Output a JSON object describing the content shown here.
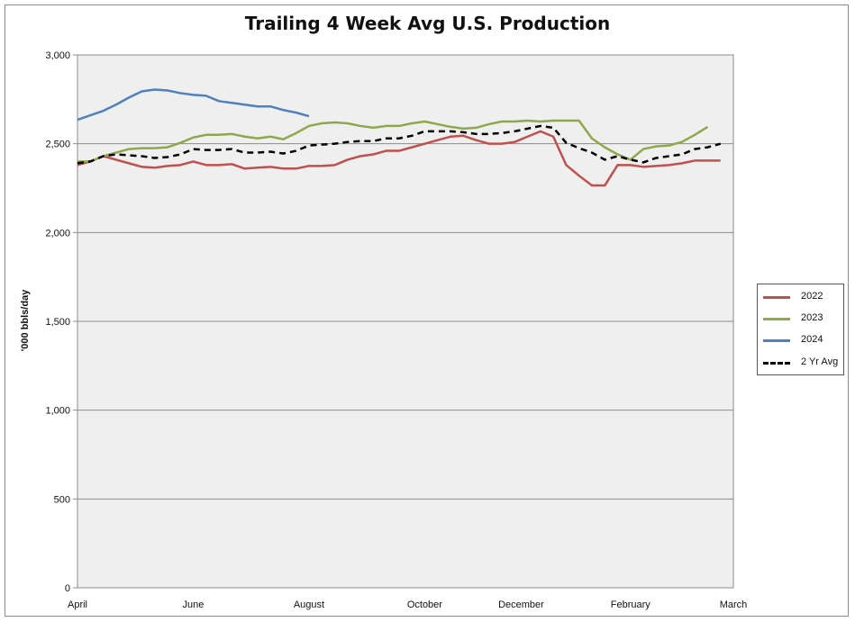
{
  "chart_data": {
    "type": "line",
    "title": "Trailing 4 Week Avg U.S. Production",
    "ylabel": "'000 bbls/day",
    "xlabel": "",
    "ylim": [
      0,
      3000
    ],
    "yticks": [
      0,
      500,
      1000,
      1500,
      2000,
      2500,
      3000
    ],
    "ytick_labels": [
      "0",
      "500",
      "1,000",
      "1,500",
      "2,000",
      "2,500",
      "3,000"
    ],
    "x_range": [
      0,
      51
    ],
    "xticks": [
      {
        "pos": 0,
        "label": "April"
      },
      {
        "pos": 9,
        "label": "June"
      },
      {
        "pos": 18,
        "label": "August"
      },
      {
        "pos": 27,
        "label": "October"
      },
      {
        "pos": 34.5,
        "label": "December"
      },
      {
        "pos": 43,
        "label": "February"
      },
      {
        "pos": 51,
        "label": "March"
      }
    ],
    "grid": true,
    "legend_position": "right",
    "series": [
      {
        "name": "2022",
        "color": "#c0504d",
        "dash": false,
        "values": [
          2380,
          2400,
          2430,
          2410,
          2390,
          2370,
          2365,
          2375,
          2380,
          2400,
          2380,
          2380,
          2385,
          2360,
          2365,
          2370,
          2360,
          2360,
          2375,
          2375,
          2380,
          2410,
          2430,
          2440,
          2460,
          2460,
          2480,
          2500,
          2520,
          2540,
          2545,
          2520,
          2500,
          2500,
          2510,
          2540,
          2570,
          2540,
          2380,
          2320,
          2265,
          2265,
          2380,
          2380,
          2370,
          2375,
          2380,
          2390,
          2405,
          2405,
          2405
        ]
      },
      {
        "name": "2023",
        "color": "#8fa84b",
        "dash": false,
        "values": [
          2400,
          2400,
          2430,
          2450,
          2470,
          2475,
          2475,
          2480,
          2505,
          2535,
          2550,
          2550,
          2555,
          2540,
          2530,
          2540,
          2525,
          2560,
          2600,
          2615,
          2620,
          2615,
          2600,
          2590,
          2600,
          2600,
          2615,
          2625,
          2610,
          2595,
          2585,
          2590,
          2610,
          2625,
          2625,
          2630,
          2625,
          2630,
          2630,
          2630,
          2530,
          2480,
          2440,
          2410,
          2470,
          2485,
          2490,
          2510,
          2550,
          2595
        ]
      },
      {
        "name": "2024",
        "color": "#4f81bd",
        "dash": false,
        "values": [
          2635,
          2660,
          2685,
          2720,
          2760,
          2795,
          2805,
          2800,
          2785,
          2775,
          2770,
          2740,
          2730,
          2720,
          2710,
          2710,
          2690,
          2675,
          2655
        ]
      },
      {
        "name": "2 Yr Avg",
        "color": "#000000",
        "dash": true,
        "values": [
          2390,
          2400,
          2430,
          2440,
          2435,
          2430,
          2420,
          2425,
          2440,
          2470,
          2465,
          2465,
          2470,
          2450,
          2450,
          2455,
          2445,
          2460,
          2490,
          2495,
          2500,
          2510,
          2515,
          2515,
          2530,
          2530,
          2545,
          2570,
          2570,
          2570,
          2565,
          2555,
          2555,
          2560,
          2570,
          2585,
          2600,
          2590,
          2505,
          2475,
          2450,
          2410,
          2430,
          2410,
          2395,
          2420,
          2430,
          2440,
          2470,
          2480,
          2500
        ]
      }
    ]
  }
}
